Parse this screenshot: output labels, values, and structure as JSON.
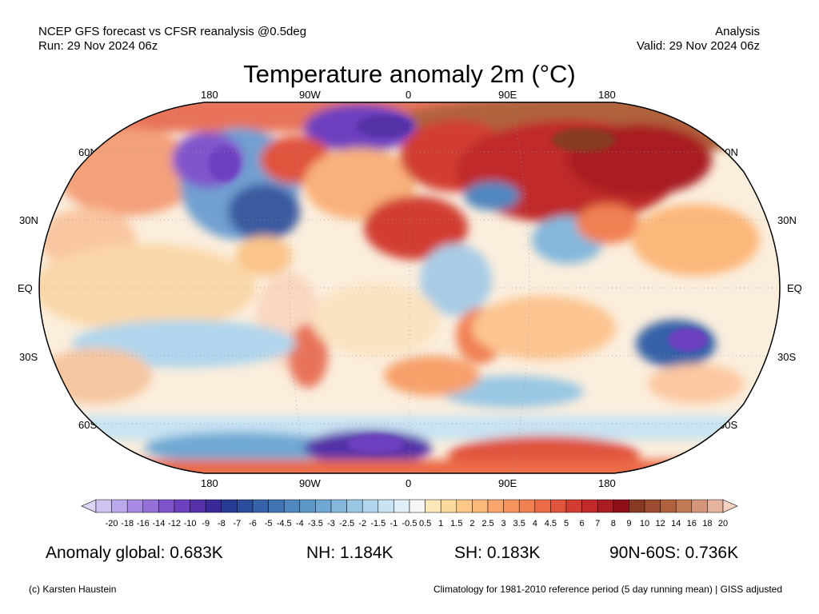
{
  "header": {
    "left_line1": "NCEP GFS forecast vs CFSR reanalysis @0.5deg",
    "left_line2": "Run: 29 Nov 2024 06z",
    "right_line1": "Analysis",
    "right_line2": "Valid: 29 Nov 2024 06z"
  },
  "title": "Temperature anomaly 2m (°C)",
  "map": {
    "projection": "Robinson",
    "lon_labels_top": [
      "180",
      "90W",
      "0",
      "90E",
      "180"
    ],
    "lon_labels_bottom": [
      "180",
      "90W",
      "0",
      "90E",
      "180"
    ],
    "lat_labels_left": [
      "60N",
      "30N",
      "EQ",
      "30S",
      "60S"
    ],
    "lat_labels_right": [
      "60N",
      "30N",
      "EQ",
      "30S",
      "60S"
    ]
  },
  "colorbar": {
    "labels": [
      "-20",
      "-18",
      "-16",
      "-14",
      "-12",
      "-10",
      "-9",
      "-8",
      "-7",
      "-6",
      "-5",
      "-4.5",
      "-4",
      "-3.5",
      "-3",
      "-2.5",
      "-2",
      "-1.5",
      "-1",
      "-0.5",
      "0.5",
      "1",
      "1.5",
      "2",
      "2.5",
      "3",
      "3.5",
      "4",
      "4.5",
      "5",
      "6",
      "7",
      "8",
      "9",
      "10",
      "12",
      "14",
      "16",
      "18",
      "20"
    ],
    "colors": [
      "#cfc3f2",
      "#bca8ec",
      "#a78ae3",
      "#9470d8",
      "#8055cc",
      "#6d40bf",
      "#5530a8",
      "#3a2a98",
      "#283b92",
      "#2c4c9c",
      "#3562a8",
      "#4274b3",
      "#5087bf",
      "#5e98c9",
      "#6fa9d3",
      "#83b8dc",
      "#99c7e4",
      "#b0d5ec",
      "#c8e3f3",
      "#e0eff9",
      "#f6f6f4",
      "#fbe7b8",
      "#fcd99c",
      "#fdc888",
      "#fcb77a",
      "#fba56c",
      "#f7935e",
      "#f18052",
      "#eb6b46",
      "#e0533c",
      "#d23d33",
      "#c02a2a",
      "#a81c22",
      "#8e0f18",
      "#883a24",
      "#9c4c30",
      "#b0623e",
      "#c27a56",
      "#d4957a",
      "#e6b39e"
    ],
    "under_color": "#dcd3f5",
    "over_color": "#f6d2c2"
  },
  "stats": {
    "global": "Anomaly global: 0.683K",
    "nh": "NH: 1.184K",
    "sh": "SH: 0.183K",
    "arctic": "90N-60S: 0.736K"
  },
  "footer": {
    "left": "(c) Karsten Haustein",
    "right": "Climatology for 1981-2010 reference period (5 day running mean) | GISS adjusted"
  }
}
